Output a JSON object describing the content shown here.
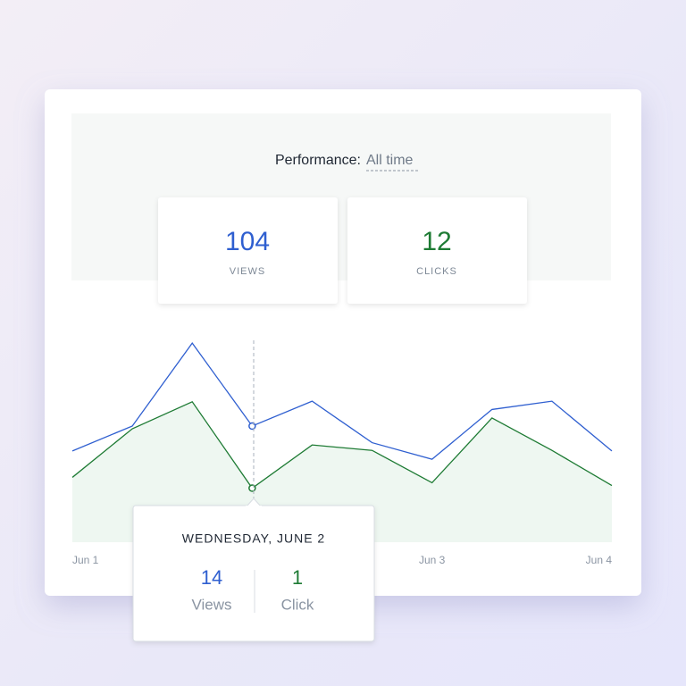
{
  "header": {
    "title": "Performance:",
    "period": "All time"
  },
  "stats": [
    {
      "value": "104",
      "label": "VIEWS"
    },
    {
      "value": "12",
      "label": "CLICKS"
    }
  ],
  "chart_data": {
    "type": "line",
    "categories": [
      "Jun 1",
      null,
      null,
      null,
      null,
      null,
      "Jun 3",
      null,
      null,
      "Jun 4"
    ],
    "ylim": [
      0,
      28
    ],
    "y2lim": [
      0,
      4.3
    ],
    "series": [
      {
        "name": "Views",
        "color": "#2f5fd0",
        "values": [
          11,
          14,
          24,
          14,
          17,
          12,
          10,
          16,
          17,
          11
        ]
      },
      {
        "name": "Clicks",
        "color": "#1e7b34",
        "axis": "y2",
        "values": [
          1.2,
          2.1,
          2.6,
          1,
          1.8,
          1.7,
          1.1,
          2.3,
          1.7,
          1.05
        ]
      }
    ]
  },
  "tooltip": {
    "date": "WEDNESDAY, JUNE 2",
    "views": "14",
    "views_label": "Views",
    "clicks": "1",
    "clicks_label": "Click"
  }
}
